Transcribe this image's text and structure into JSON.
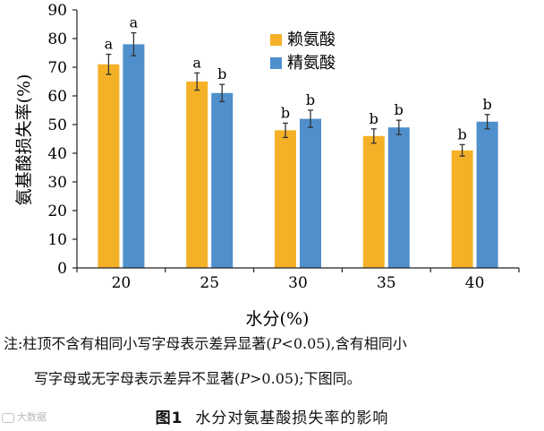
{
  "chart_data": {
    "type": "bar",
    "categories": [
      "20",
      "25",
      "30",
      "35",
      "40"
    ],
    "series": [
      {
        "name": "赖氨酸",
        "color": "#F4B128",
        "values": [
          71,
          65,
          48,
          46,
          41
        ],
        "errors": [
          3.5,
          3,
          2.5,
          2.5,
          2
        ],
        "labels": [
          "a",
          "a",
          "b",
          "b",
          "b"
        ]
      },
      {
        "name": "精氨酸",
        "color": "#4F8FCC",
        "values": [
          78,
          61,
          52,
          49,
          51
        ],
        "errors": [
          4,
          3,
          3,
          2.5,
          2.5
        ],
        "labels": [
          "a",
          "b",
          "b",
          "b",
          "b"
        ]
      }
    ],
    "xlabel": "水分(%)",
    "ylabel": "氨基酸损失率(%)",
    "ylim": [
      0,
      90
    ],
    "yticks": [
      0,
      10,
      20,
      30,
      40,
      50,
      60,
      70,
      80,
      90
    ],
    "legend_position": "top-right"
  },
  "note": {
    "line1_a": "注:柱顶不含有相同小写字母表示差异显著(",
    "p": "P",
    "line1_b": "<0.05),含有相同小",
    "line2_a": "写字母或无字母表示差异不显著(",
    "line2_b": ">0.05);下图同。"
  },
  "caption": {
    "fig_no": "图1",
    "title": "水分对氨基酸损失率的影响"
  },
  "watermark": "大数据"
}
